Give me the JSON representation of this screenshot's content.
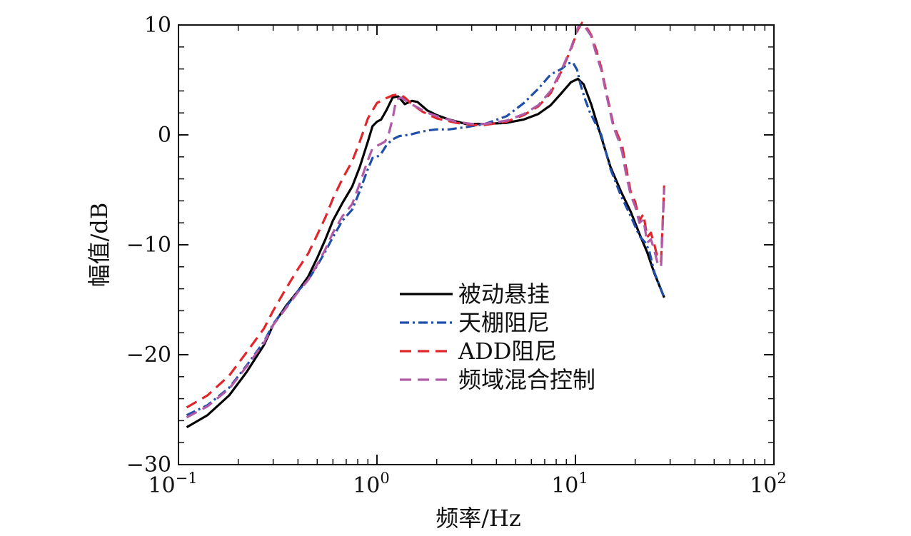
{
  "chart_data": {
    "type": "line",
    "title": "",
    "xlabel": "频率/Hz",
    "ylabel": "幅值/dB",
    "xscale": "log",
    "xlim": [
      0.1,
      100
    ],
    "ylim": [
      -30,
      10
    ],
    "grid": false,
    "legend_position": "center-right",
    "x_ticks": [
      {
        "value": 0.1,
        "base": "10",
        "exp": "−1"
      },
      {
        "value": 1,
        "base": "10",
        "exp": "0"
      },
      {
        "value": 10,
        "base": "10",
        "exp": "1"
      },
      {
        "value": 100,
        "base": "10",
        "exp": "2"
      }
    ],
    "y_ticks": [
      {
        "value": 10,
        "label": "10"
      },
      {
        "value": 0,
        "label": "0"
      },
      {
        "value": -10,
        "label": "−10"
      },
      {
        "value": -20,
        "label": "−20"
      },
      {
        "value": -30,
        "label": "−30"
      }
    ],
    "series": [
      {
        "name": "被动悬挂",
        "color": "#000000",
        "dash": "solid",
        "points": [
          [
            0.11,
            -26.6
          ],
          [
            0.14,
            -25.5
          ],
          [
            0.18,
            -23.7
          ],
          [
            0.22,
            -21.6
          ],
          [
            0.27,
            -19.1
          ],
          [
            0.3,
            -17.3
          ],
          [
            0.35,
            -15.5
          ],
          [
            0.4,
            -14.2
          ],
          [
            0.45,
            -12.9
          ],
          [
            0.5,
            -11.2
          ],
          [
            0.55,
            -9.5
          ],
          [
            0.6,
            -7.8
          ],
          [
            0.67,
            -6.2
          ],
          [
            0.75,
            -4.7
          ],
          [
            0.82,
            -2.9
          ],
          [
            0.9,
            -0.6
          ],
          [
            0.95,
            0.8
          ],
          [
            1.0,
            1.2
          ],
          [
            1.05,
            1.4
          ],
          [
            1.12,
            2.3
          ],
          [
            1.2,
            3.4
          ],
          [
            1.28,
            3.5
          ],
          [
            1.38,
            2.8
          ],
          [
            1.5,
            3.1
          ],
          [
            1.6,
            3.0
          ],
          [
            1.8,
            2.2
          ],
          [
            2.0,
            1.8
          ],
          [
            2.3,
            1.4
          ],
          [
            2.8,
            1.0
          ],
          [
            3.5,
            1.0
          ],
          [
            4.5,
            1.1
          ],
          [
            5.5,
            1.4
          ],
          [
            6.5,
            1.9
          ],
          [
            7.5,
            2.7
          ],
          [
            8.5,
            3.8
          ],
          [
            9.5,
            4.8
          ],
          [
            10.3,
            5.1
          ],
          [
            11.0,
            4.6
          ],
          [
            12.0,
            2.8
          ],
          [
            13.5,
            -0.2
          ],
          [
            15.0,
            -2.9
          ],
          [
            17.0,
            -5.2
          ],
          [
            19.0,
            -7.0
          ],
          [
            21.0,
            -9.0
          ],
          [
            23.0,
            -10.7
          ],
          [
            25.0,
            -12.6
          ],
          [
            28.0,
            -14.8
          ]
        ]
      },
      {
        "name": "天棚阻尼",
        "color": "#1f4fa8",
        "dash": "dashdot",
        "points": [
          [
            0.11,
            -25.5
          ],
          [
            0.14,
            -24.6
          ],
          [
            0.18,
            -23.0
          ],
          [
            0.22,
            -21.0
          ],
          [
            0.27,
            -18.8
          ],
          [
            0.3,
            -17.2
          ],
          [
            0.35,
            -15.6
          ],
          [
            0.4,
            -14.2
          ],
          [
            0.45,
            -13.2
          ],
          [
            0.5,
            -11.9
          ],
          [
            0.55,
            -10.6
          ],
          [
            0.6,
            -9.3
          ],
          [
            0.67,
            -7.8
          ],
          [
            0.75,
            -6.8
          ],
          [
            0.82,
            -5.1
          ],
          [
            0.9,
            -3.1
          ],
          [
            0.95,
            -2.1
          ],
          [
            1.0,
            -2.0
          ],
          [
            1.05,
            -1.7
          ],
          [
            1.12,
            -0.9
          ],
          [
            1.2,
            -0.4
          ],
          [
            1.3,
            -0.1
          ],
          [
            1.45,
            0.0
          ],
          [
            1.6,
            0.2
          ],
          [
            1.8,
            0.4
          ],
          [
            2.0,
            0.5
          ],
          [
            2.3,
            0.5
          ],
          [
            2.8,
            0.7
          ],
          [
            3.5,
            1.0
          ],
          [
            4.5,
            1.7
          ],
          [
            5.5,
            2.9
          ],
          [
            6.5,
            4.2
          ],
          [
            7.5,
            5.5
          ],
          [
            8.5,
            6.0
          ],
          [
            9.2,
            6.5
          ],
          [
            9.7,
            6.6
          ],
          [
            10.2,
            5.9
          ],
          [
            10.6,
            4.6
          ],
          [
            11.2,
            3.2
          ],
          [
            11.8,
            2.1
          ],
          [
            12.5,
            1.2
          ],
          [
            13.5,
            0.0
          ],
          [
            15.0,
            -3.1
          ],
          [
            17.0,
            -5.6
          ],
          [
            19.0,
            -7.4
          ],
          [
            21.0,
            -9.2
          ],
          [
            22.5,
            -9.8
          ],
          [
            23.5,
            -10.5
          ],
          [
            25.0,
            -12.5
          ],
          [
            28.0,
            -14.8
          ]
        ]
      },
      {
        "name": "ADD阻尼",
        "color": "#e0262b",
        "dash": "dashed",
        "points": [
          [
            0.11,
            -24.8
          ],
          [
            0.14,
            -23.7
          ],
          [
            0.18,
            -21.9
          ],
          [
            0.22,
            -19.8
          ],
          [
            0.27,
            -17.6
          ],
          [
            0.3,
            -16.0
          ],
          [
            0.35,
            -13.9
          ],
          [
            0.4,
            -12.2
          ],
          [
            0.45,
            -10.8
          ],
          [
            0.5,
            -9.1
          ],
          [
            0.55,
            -7.5
          ],
          [
            0.6,
            -5.8
          ],
          [
            0.67,
            -4.0
          ],
          [
            0.75,
            -2.4
          ],
          [
            0.82,
            -0.6
          ],
          [
            0.9,
            1.5
          ],
          [
            1.0,
            2.9
          ],
          [
            1.1,
            3.3
          ],
          [
            1.2,
            3.6
          ],
          [
            1.3,
            3.7
          ],
          [
            1.38,
            3.4
          ],
          [
            1.5,
            2.8
          ],
          [
            1.7,
            2.1
          ],
          [
            2.0,
            1.5
          ],
          [
            2.5,
            1.1
          ],
          [
            3.0,
            0.9
          ],
          [
            3.5,
            0.9
          ],
          [
            4.5,
            1.2
          ],
          [
            5.5,
            1.8
          ],
          [
            6.5,
            2.6
          ],
          [
            7.5,
            3.8
          ],
          [
            8.5,
            5.8
          ],
          [
            9.5,
            7.8
          ],
          [
            10.3,
            9.6
          ],
          [
            10.8,
            10.2
          ],
          [
            11.2,
            10.0
          ],
          [
            12.0,
            9.1
          ],
          [
            12.8,
            7.6
          ],
          [
            13.5,
            6.1
          ],
          [
            14.5,
            3.4
          ],
          [
            15.5,
            1.0
          ],
          [
            16.5,
            -0.2
          ],
          [
            17.2,
            -1.0
          ],
          [
            18.0,
            -3.0
          ],
          [
            19.0,
            -5.2
          ],
          [
            20.0,
            -6.1
          ],
          [
            21.0,
            -7.8
          ],
          [
            22.0,
            -7.2
          ],
          [
            23.0,
            -9.3
          ],
          [
            24.0,
            -8.9
          ],
          [
            25.0,
            -10.0
          ],
          [
            26.0,
            -11.3
          ],
          [
            27.0,
            -11.5
          ],
          [
            28.0,
            -4.6
          ]
        ]
      },
      {
        "name": "频域混合控制",
        "color": "#b05aa8",
        "dash": "dashed",
        "points": [
          [
            0.11,
            -25.7
          ],
          [
            0.14,
            -24.7
          ],
          [
            0.18,
            -23.1
          ],
          [
            0.22,
            -21.1
          ],
          [
            0.27,
            -18.9
          ],
          [
            0.3,
            -17.3
          ],
          [
            0.35,
            -15.7
          ],
          [
            0.4,
            -14.3
          ],
          [
            0.45,
            -13.2
          ],
          [
            0.5,
            -11.8
          ],
          [
            0.55,
            -10.4
          ],
          [
            0.6,
            -8.9
          ],
          [
            0.67,
            -7.4
          ],
          [
            0.75,
            -6.3
          ],
          [
            0.82,
            -4.4
          ],
          [
            0.9,
            -2.3
          ],
          [
            0.95,
            -1.2
          ],
          [
            1.0,
            -1.0
          ],
          [
            1.05,
            -0.8
          ],
          [
            1.1,
            -0.6
          ],
          [
            1.15,
            0.2
          ],
          [
            1.2,
            1.5
          ],
          [
            1.25,
            3.2
          ],
          [
            1.32,
            3.4
          ],
          [
            1.45,
            2.9
          ],
          [
            1.6,
            2.5
          ],
          [
            1.8,
            2.0
          ],
          [
            2.0,
            1.7
          ],
          [
            2.5,
            1.2
          ],
          [
            3.0,
            1.0
          ],
          [
            3.5,
            1.0
          ],
          [
            4.5,
            1.3
          ],
          [
            5.5,
            1.9
          ],
          [
            6.5,
            2.7
          ],
          [
            7.5,
            4.0
          ],
          [
            8.5,
            5.9
          ],
          [
            9.5,
            7.9
          ],
          [
            10.3,
            9.8
          ],
          [
            10.8,
            10.1
          ],
          [
            11.2,
            9.8
          ],
          [
            12.0,
            9.0
          ],
          [
            12.8,
            7.2
          ],
          [
            13.5,
            5.9
          ],
          [
            14.5,
            3.2
          ],
          [
            15.5,
            0.8
          ],
          [
            16.5,
            -0.5
          ],
          [
            17.2,
            -1.6
          ],
          [
            18.0,
            -3.6
          ],
          [
            19.0,
            -5.5
          ],
          [
            20.0,
            -6.5
          ],
          [
            21.0,
            -8.0
          ],
          [
            22.0,
            -7.7
          ],
          [
            23.0,
            -9.8
          ],
          [
            24.0,
            -9.5
          ],
          [
            25.0,
            -10.5
          ],
          [
            26.0,
            -11.8
          ],
          [
            27.0,
            -12.0
          ],
          [
            28.0,
            -4.8
          ]
        ]
      }
    ]
  }
}
